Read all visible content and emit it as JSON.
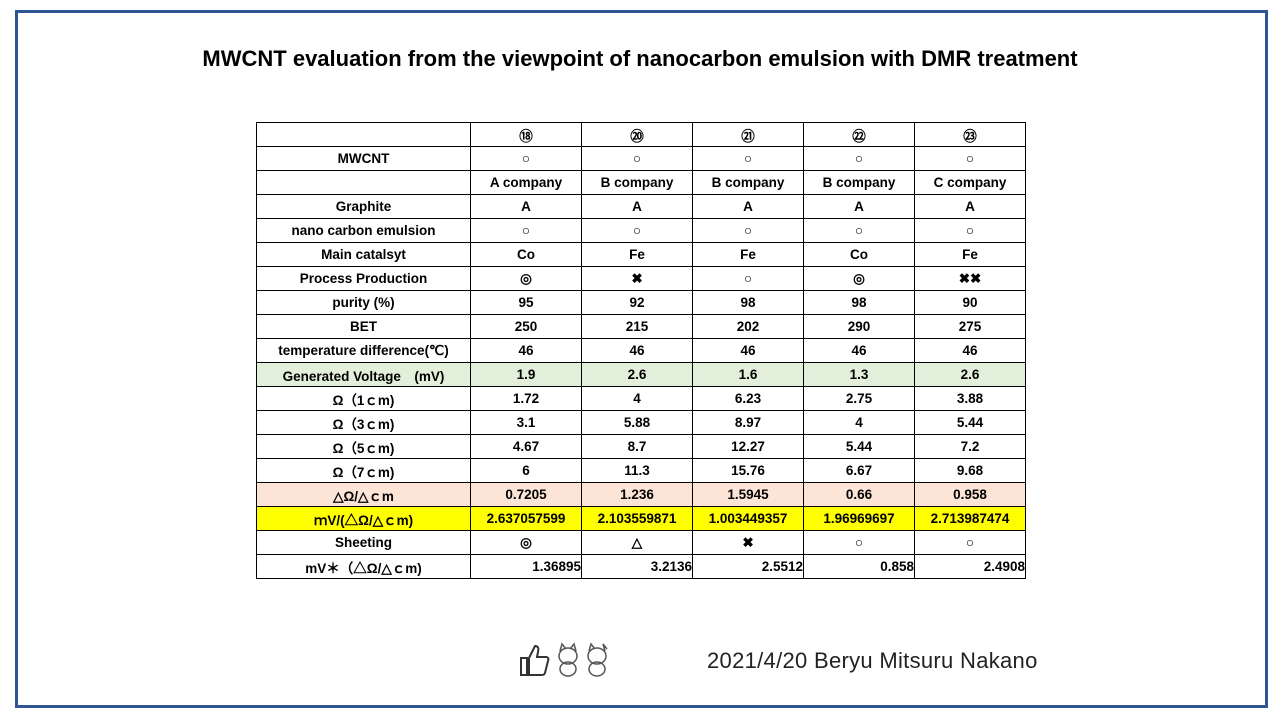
{
  "title": "MWCNT evaluation from the viewpoint of nanocarbon emulsion with DMR treatment",
  "table": {
    "columns": [
      "⑱",
      "⑳",
      "㉑",
      "㉒",
      "㉓"
    ],
    "rows": [
      {
        "label": "MWCNT",
        "cells": [
          "○",
          "○",
          "○",
          "○",
          "○"
        ]
      },
      {
        "cells": [
          "A company",
          "B company",
          "B company",
          "B company",
          "C company"
        ]
      },
      {
        "label": "Graphite",
        "cells": [
          "A",
          "A",
          "A",
          "A",
          "A"
        ]
      },
      {
        "label": "nano carbon emulsion",
        "cells": [
          "○",
          "○",
          "○",
          "○",
          "○"
        ]
      },
      {
        "label": "Main catalsyt",
        "cells": [
          "Co",
          "Fe",
          "Fe",
          "Co",
          "Fe"
        ]
      },
      {
        "label": "Process Production",
        "cells": [
          "◎",
          "✖",
          "○",
          "◎",
          "✖✖"
        ]
      },
      {
        "label": "purity (%)",
        "cells": [
          95,
          92,
          98,
          98,
          90
        ]
      },
      {
        "label": "BET",
        "cells": [
          250,
          215,
          202,
          290,
          275
        ]
      },
      {
        "label": "temperature difference(℃)",
        "cells": [
          46,
          46,
          46,
          46,
          46
        ]
      },
      {
        "label": "Generated Voltage　(mV)",
        "cells": [
          1.9,
          2.6,
          1.6,
          1.3,
          2.6
        ]
      },
      {
        "label": "Ω（1ｃm)",
        "cells": [
          1.72,
          4,
          6.23,
          2.75,
          3.88
        ]
      },
      {
        "label": "Ω（3ｃm)",
        "cells": [
          3.1,
          5.88,
          8.97,
          4,
          5.44
        ]
      },
      {
        "label": "Ω（5ｃm)",
        "cells": [
          4.67,
          8.7,
          12.27,
          5.44,
          7.2
        ]
      },
      {
        "label": "Ω（7ｃm)",
        "cells": [
          6,
          11.3,
          15.76,
          6.67,
          9.68
        ]
      },
      {
        "label": "△Ω/△ｃm",
        "cells": [
          0.7205,
          1.236,
          1.5945,
          0.66,
          0.958
        ]
      },
      {
        "label": "ｍV/(△Ω/△ｃm)",
        "cells": [
          2.637057599,
          2.103559871,
          1.003449357,
          1.96969697,
          2.713987474
        ]
      },
      {
        "label": "Sheeting",
        "cells": [
          "◎",
          "△",
          "✖",
          "○",
          "○"
        ]
      },
      {
        "label": "mV＊（△Ω/△ｃm)",
        "cells": [
          1.36895,
          3.2136,
          2.5512,
          0.858,
          2.4908
        ]
      }
    ]
  },
  "footer": "2021/4/20 Beryu Mitsuru Nakano"
}
